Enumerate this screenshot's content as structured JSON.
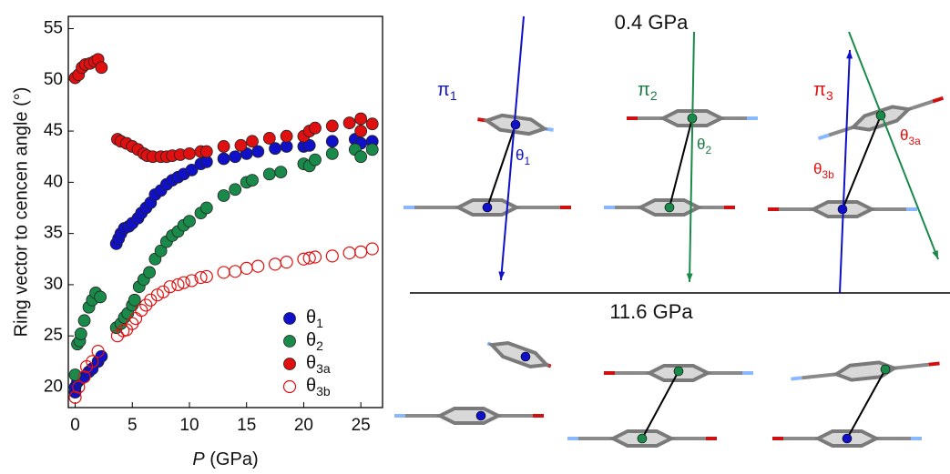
{
  "chart_data": {
    "type": "scatter",
    "xlabel": "P (GPa)",
    "ylabel": "Ring vector to cencen angle (°)",
    "xlim": [
      -0.6,
      26.9
    ],
    "ylim": [
      18,
      56.2
    ],
    "xticks": [
      0,
      5,
      10,
      15,
      20,
      25
    ],
    "yticks": [
      20,
      25,
      30,
      35,
      40,
      45,
      50,
      55
    ],
    "legend": "lower right",
    "series": [
      {
        "name": "θ1",
        "color": "#1010c8",
        "marker": "filled",
        "x": [
          0,
          0,
          0.2,
          0.5,
          0.8,
          1.2,
          1.5,
          2,
          2.3,
          3.6,
          3.8,
          4,
          4.3,
          4.7,
          5,
          5.5,
          5.8,
          6.2,
          6.6,
          7,
          7.5,
          8,
          8.5,
          9,
          9.5,
          10.2,
          11,
          11.5,
          13,
          14,
          15,
          16,
          17.5,
          18.5,
          20,
          20.5,
          22.5,
          24.5,
          25,
          26
        ],
        "values": [
          19.5,
          20,
          20.5,
          20.8,
          21,
          21.5,
          21.8,
          22.5,
          23,
          34,
          34.5,
          35,
          35.5,
          35.7,
          36,
          36.5,
          37,
          37.5,
          38,
          38.8,
          39.2,
          39.8,
          40.2,
          40.5,
          40.8,
          41.2,
          41.8,
          42,
          42.3,
          42.5,
          42.8,
          43,
          43.3,
          43.5,
          43.5,
          43.6,
          44,
          44.2,
          43.8,
          44
        ]
      },
      {
        "name": "θ2",
        "color": "#1a8a4a",
        "marker": "filled",
        "x": [
          0,
          0.2,
          0.4,
          0.5,
          0.8,
          1.2,
          1.5,
          1.8,
          2.2,
          3.6,
          4,
          4.3,
          4.6,
          5,
          5.2,
          5.6,
          6,
          6.5,
          7,
          7.5,
          8,
          8.5,
          9,
          9.5,
          10,
          11,
          11.5,
          13,
          14,
          15,
          15.5,
          17,
          18,
          20,
          20.5,
          21,
          22.5,
          24.5,
          25,
          26
        ],
        "values": [
          21.2,
          24.2,
          24.5,
          25.2,
          26.5,
          27.8,
          28.5,
          29.2,
          28.8,
          25.8,
          26.2,
          26.8,
          27.2,
          28,
          28.5,
          29.8,
          30.5,
          31.2,
          32.5,
          33.3,
          34.2,
          34.8,
          35.2,
          35.8,
          36.2,
          37,
          37.5,
          38.7,
          39.3,
          40,
          40.2,
          40.8,
          41,
          41.8,
          41.6,
          42.2,
          42.8,
          43.2,
          42.5,
          43.2
        ]
      },
      {
        "name": "θ3a",
        "color": "#e01010",
        "marker": "filled",
        "x": [
          0,
          0.3,
          0.6,
          0.9,
          1.3,
          1.7,
          2,
          2.3,
          3.7,
          4,
          4.5,
          5,
          5.5,
          6,
          6.3,
          6.8,
          7.5,
          8,
          8.5,
          9.2,
          10,
          11,
          11.5,
          13,
          14.5,
          15.5,
          17,
          18.5,
          20,
          20.5,
          21,
          22.5,
          24,
          25,
          25,
          26
        ],
        "values": [
          50.2,
          50.5,
          51.2,
          51.5,
          51.6,
          51.8,
          52,
          51.2,
          44.2,
          44,
          43.8,
          43.5,
          43.2,
          42.8,
          42.6,
          42.5,
          42.5,
          42.5,
          42.6,
          42.7,
          42.8,
          43,
          43,
          43.5,
          43.6,
          44,
          44.3,
          44.5,
          44.5,
          45,
          45.3,
          45.5,
          45.8,
          46.2,
          45,
          45.7
        ]
      },
      {
        "name": "θ3b",
        "color": "#e01010",
        "marker": "open",
        "x": [
          0,
          0.3,
          0.8,
          1,
          1.5,
          2,
          3.7,
          4.2,
          4.5,
          5,
          5.3,
          5.8,
          6.2,
          6.6,
          7.2,
          7.7,
          8.3,
          9,
          9.5,
          10.2,
          11,
          11.5,
          13,
          14,
          15,
          16,
          17.5,
          18.5,
          20,
          20.5,
          21,
          22.5,
          24,
          25,
          26
        ],
        "values": [
          19,
          20,
          21,
          22,
          22.5,
          23.5,
          25,
          25.5,
          25.6,
          26.2,
          26.7,
          27.5,
          28,
          28.5,
          29,
          29.3,
          29.8,
          30,
          30.2,
          30.4,
          30.7,
          30.8,
          31.2,
          31.3,
          31.6,
          31.8,
          32,
          32.2,
          32.5,
          32.6,
          32.7,
          32.8,
          33.1,
          33.2,
          33.5
        ]
      }
    ]
  },
  "figure": {
    "pressure_top": "0.4 GPa",
    "pressure_bottom": "11.6 GPa",
    "vectors": [
      "π1",
      "π2",
      "π3"
    ],
    "angles": [
      "θ1",
      "θ2",
      "θ3a",
      "θ3b"
    ]
  }
}
